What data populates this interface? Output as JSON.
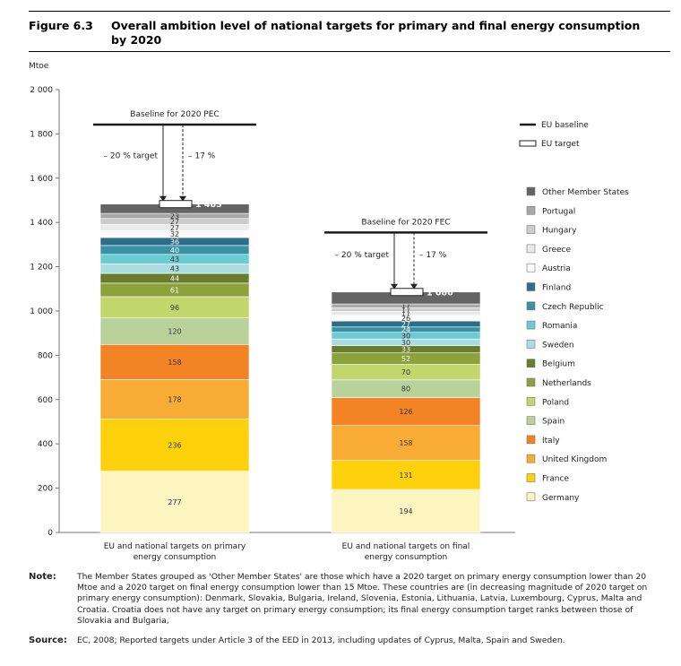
{
  "figure": {
    "label": "Figure 6.3",
    "title": "Overall ambition level of national targets for primary and final energy consumption by 2020"
  },
  "note": {
    "label": "Note:",
    "text": "The Member States grouped as 'Other Member States' are those which have a 2020 target on primary energy consumption lower than 20 Mtoe and a 2020 target on final energy consumption lower than 15 Mtoe. These countries are (in decreasing magnitude of 2020 target on primary energy consumption): Denmark, Slovakia, Bulgaria, Ireland, Slovenia, Estonia, Lithuania, Latvia, Luxembourg, Cyprus, Malta and Croatia. Croatia does not have any target on primary energy consumption; its final energy consumption target ranks between those of Slovakia and Bulgaria,"
  },
  "source": {
    "label": "Source:",
    "text": "EC, 2008; Reported targets under Article 3 of the EED in 2013, including updates of Cyprus, Malta, Spain and Sweden."
  },
  "chart_data": {
    "type": "bar",
    "stacked": true,
    "ylabel": "Mtoe",
    "ylim": [
      0,
      2000
    ],
    "yticks": [
      0,
      200,
      400,
      600,
      800,
      1000,
      1200,
      1400,
      1600,
      1800,
      2000
    ],
    "ytick_labels": [
      "0",
      "200",
      "400",
      "600",
      "800",
      "1 000",
      "1 200",
      "1 400",
      "1 600",
      "1 800",
      "2 000"
    ],
    "categories": [
      "EU and national targets on primary energy consumption",
      "EU and national targets on final energy consumption"
    ],
    "series": [
      {
        "name": "Germany",
        "color": "#fdf5c0",
        "values": [
          277,
          194
        ]
      },
      {
        "name": "France",
        "color": "#fdd20d",
        "values": [
          236,
          131
        ]
      },
      {
        "name": "United Kingdom",
        "color": "#f9ac35",
        "values": [
          178,
          158
        ]
      },
      {
        "name": "Italy",
        "color": "#f28426",
        "values": [
          158,
          126
        ]
      },
      {
        "name": "Spain",
        "color": "#b9d29c",
        "values": [
          120,
          80
        ]
      },
      {
        "name": "Poland",
        "color": "#c2d66b",
        "values": [
          96,
          70
        ]
      },
      {
        "name": "Netherlands",
        "color": "#8ea23c",
        "values": [
          61,
          52
        ]
      },
      {
        "name": "Belgium",
        "color": "#687c2c",
        "values": [
          44,
          33
        ]
      },
      {
        "name": "Sweden",
        "color": "#a9dde4",
        "values": [
          43,
          30
        ]
      },
      {
        "name": "Romania",
        "color": "#6ccad2",
        "values": [
          43,
          30
        ]
      },
      {
        "name": "Czech Republic",
        "color": "#3892a6",
        "values": [
          40,
          24
        ]
      },
      {
        "name": "Finland",
        "color": "#2c6e88",
        "values": [
          36,
          27
        ]
      },
      {
        "name": "Austria",
        "color": "#fbfbfb",
        "values": [
          32,
          26
        ]
      },
      {
        "name": "Greece",
        "color": "#e9e9e9",
        "values": [
          27,
          17
        ]
      },
      {
        "name": "Hungary",
        "color": "#cccccc",
        "values": [
          27,
          17
        ]
      },
      {
        "name": "Portugal",
        "color": "#a8a8a8",
        "values": [
          23,
          17
        ]
      },
      {
        "name": "Other Member States",
        "color": "#646464",
        "values": [
          null,
          null
        ]
      }
    ],
    "eu_target": {
      "values": [
        1483,
        1086
      ],
      "labels": [
        "1 483",
        "1 086"
      ]
    },
    "eu_baseline": {
      "values": [
        1842,
        1355
      ],
      "labels": [
        "Baseline for 2020 PEC",
        "Baseline for 2020 FEC"
      ]
    },
    "reduction_labels": {
      "target_20": "– 20 % target",
      "target_17": "– 17 %"
    },
    "legend": {
      "placement": "right",
      "baseline_label": "EU baseline",
      "target_label": "EU target",
      "order": [
        "Other Member States",
        "Portugal",
        "Hungary",
        "Greece",
        "Austria",
        "Finland",
        "Czech Republic",
        "Romania",
        "Sweden",
        "Belgium",
        "Netherlands",
        "Poland",
        "Spain",
        "Italy",
        "United Kingdom",
        "France",
        "Germany"
      ]
    }
  }
}
